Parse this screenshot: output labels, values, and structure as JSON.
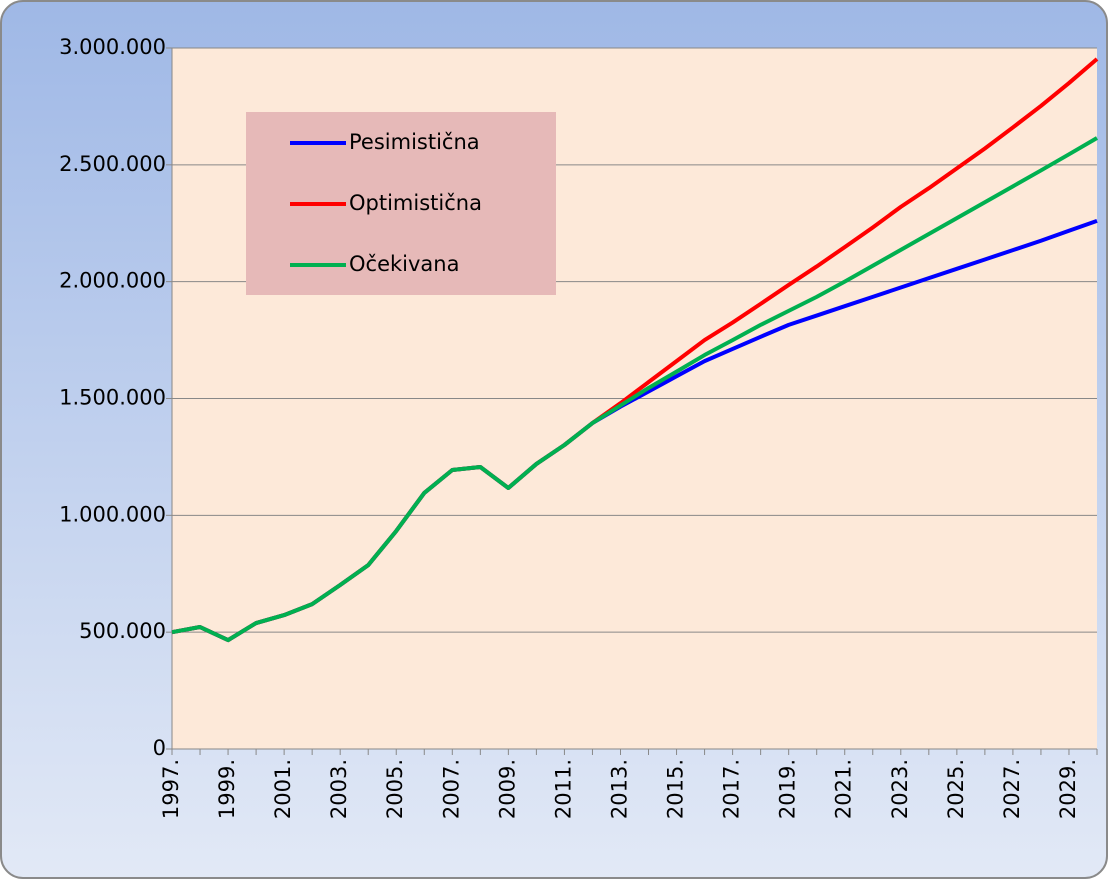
{
  "chart_data": {
    "type": "line",
    "categories": [
      "1997.",
      null,
      "1999.",
      null,
      "2001.",
      null,
      "2003.",
      null,
      "2005.",
      null,
      "2007.",
      null,
      "2009.",
      null,
      "2011.",
      null,
      "2013.",
      null,
      "2015.",
      null,
      "2017.",
      null,
      "2019.",
      null,
      "2021.",
      null,
      "2023.",
      null,
      "2025.",
      null,
      "2027.",
      null,
      "2029.",
      null
    ],
    "series": [
      {
        "name": "Pesimistična",
        "color": "#0000ff",
        "values": [
          500000,
          522000,
          466000,
          539000,
          573000,
          620000,
          702000,
          787000,
          933000,
          1096000,
          1194000,
          1207000,
          1117000,
          1220000,
          1301000,
          1395000,
          1465000,
          1530000,
          1595000,
          1660000,
          1712000,
          1764000,
          1815000,
          1855000,
          1895000,
          1935000,
          1975000,
          2015000,
          2055000,
          2095000,
          2135000,
          2175000,
          2218000,
          2260000
        ]
      },
      {
        "name": "Optimistična",
        "color": "#ff0000",
        "values": [
          500000,
          522000,
          466000,
          539000,
          573000,
          620000,
          702000,
          787000,
          933000,
          1096000,
          1194000,
          1207000,
          1117000,
          1220000,
          1301000,
          1395000,
          1480000,
          1570000,
          1660000,
          1750000,
          1825000,
          1905000,
          1986000,
          2065000,
          2148000,
          2232000,
          2320000,
          2400000,
          2485000,
          2570000,
          2660000,
          2752000,
          2850000,
          2953000
        ]
      },
      {
        "name": "Očekivana",
        "color": "#00b050",
        "values": [
          500000,
          522000,
          466000,
          539000,
          573000,
          620000,
          702000,
          787000,
          933000,
          1096000,
          1194000,
          1207000,
          1117000,
          1220000,
          1301000,
          1395000,
          1470000,
          1545000,
          1615000,
          1686000,
          1750000,
          1815000,
          1875000,
          1935000,
          2000000,
          2068000,
          2136000,
          2204000,
          2272000,
          2340000,
          2408000,
          2476000,
          2545000,
          2615000
        ]
      }
    ],
    "ylim": [
      0,
      3000000
    ],
    "yticks": [
      0,
      {
        "value": 500000,
        "label": "500.000"
      },
      {
        "value": 1000000,
        "label": "1.000.000"
      },
      {
        "value": 1500000,
        "label": "1.500.000"
      },
      {
        "value": 2000000,
        "label": "2.000.000"
      },
      {
        "value": 2500000,
        "label": "2.500.000"
      },
      {
        "value": 3000000,
        "label": "3.000.000"
      }
    ],
    "grid": true
  }
}
